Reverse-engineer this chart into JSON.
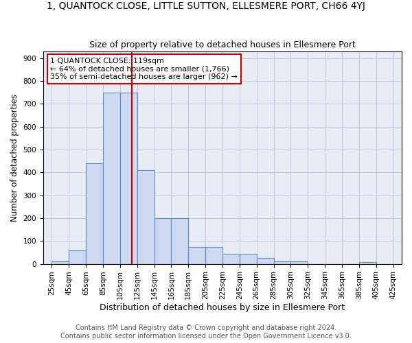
{
  "title": "1, QUANTOCK CLOSE, LITTLE SUTTON, ELLESMERE PORT, CH66 4YJ",
  "subtitle": "Size of property relative to detached houses in Ellesmere Port",
  "xlabel": "Distribution of detached houses by size in Ellesmere Port",
  "ylabel": "Number of detached properties",
  "footnote1": "Contains HM Land Registry data © Crown copyright and database right 2024.",
  "footnote2": "Contains public sector information licensed under the Open Government Licence v3.0.",
  "bin_edges": [
    25,
    45,
    65,
    85,
    105,
    125,
    145,
    165,
    185,
    205,
    225,
    245,
    265,
    285,
    305,
    325,
    345,
    365,
    385,
    405,
    425
  ],
  "values": [
    10,
    60,
    440,
    750,
    750,
    410,
    200,
    200,
    75,
    75,
    45,
    45,
    25,
    10,
    10,
    0,
    0,
    0,
    8,
    0
  ],
  "bar_color": "#ccd9f0",
  "bar_edge_color": "#6090c0",
  "vline_x": 119,
  "vline_color": "#cc0000",
  "annotation_line1": "1 QUANTOCK CLOSE: 119sqm",
  "annotation_line2": "← 64% of detached houses are smaller (1,766)",
  "annotation_line3": "35% of semi-detached houses are larger (962) →",
  "annotation_box_color": "white",
  "annotation_box_edge_color": "#cc0000",
  "ylim": [
    0,
    930
  ],
  "yticks": [
    0,
    100,
    200,
    300,
    400,
    500,
    600,
    700,
    800,
    900
  ],
  "xlim_left": 15,
  "xlim_right": 435,
  "grid_color": "#b8c4d8",
  "bg_color": "#e8edf5",
  "title_fontsize": 10,
  "subtitle_fontsize": 9,
  "xlabel_fontsize": 9,
  "ylabel_fontsize": 8.5,
  "tick_fontsize": 7.5,
  "annotation_fontsize": 8,
  "footnote_fontsize": 7
}
